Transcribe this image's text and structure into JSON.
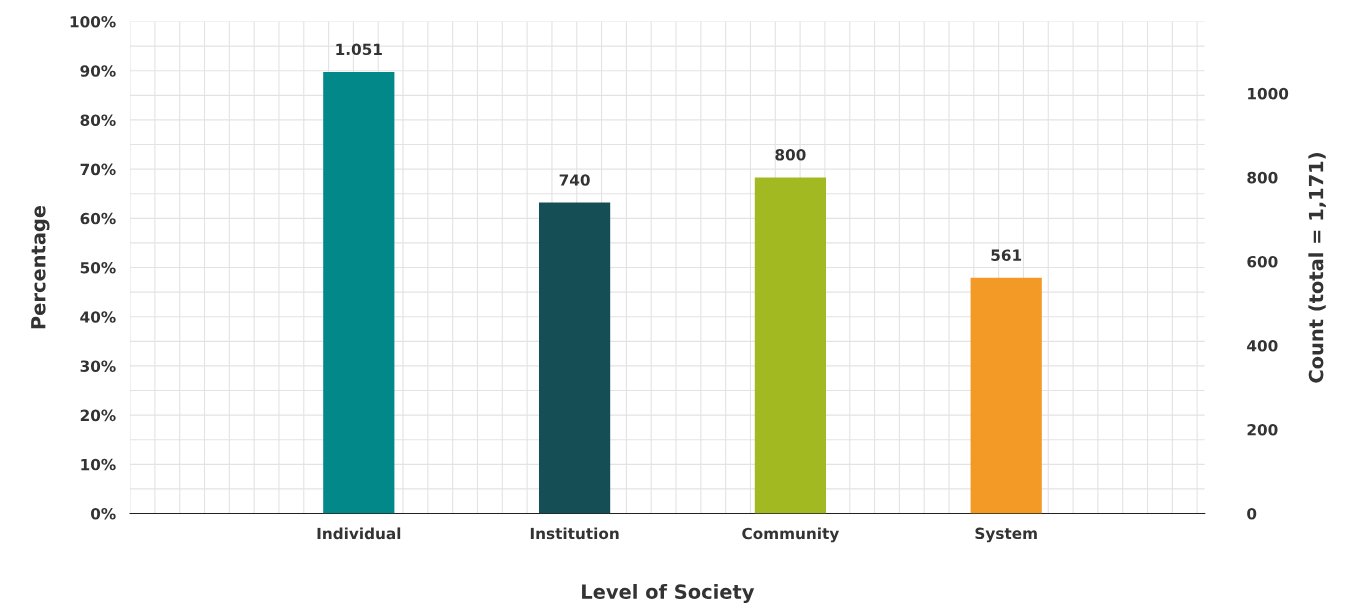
{
  "chart_data": {
    "type": "bar",
    "xlabel": "Level of Society",
    "ylabel": "Percentage",
    "y2label": "Count (total = 1,171)",
    "categories": [
      "Individual",
      "Institution",
      "Community",
      "System"
    ],
    "series": [
      {
        "values": [
          1051,
          740,
          800,
          561
        ],
        "axis": "y2"
      }
    ],
    "value_labels": [
      "1.051",
      "740",
      "800",
      "561"
    ],
    "colors": [
      "#03888a",
      "#154f55",
      "#a2b922",
      "#f39a26"
    ],
    "ylim": [
      0,
      100
    ],
    "yticks": [
      {
        "value": 0,
        "label": "0%"
      },
      {
        "value": 10,
        "label": "10%"
      },
      {
        "value": 20,
        "label": "20%"
      },
      {
        "value": 30,
        "label": "30%"
      },
      {
        "value": 40,
        "label": "40%"
      },
      {
        "value": 50,
        "label": "50%"
      },
      {
        "value": 60,
        "label": "60%"
      },
      {
        "value": 70,
        "label": "70%"
      },
      {
        "value": 80,
        "label": "80%"
      },
      {
        "value": 90,
        "label": "90%"
      },
      {
        "value": 100,
        "label": "100%"
      }
    ],
    "y2lim": [
      0,
      1171
    ],
    "y2ticks": [
      0,
      200,
      400,
      600,
      800,
      1000
    ],
    "grid": true
  }
}
